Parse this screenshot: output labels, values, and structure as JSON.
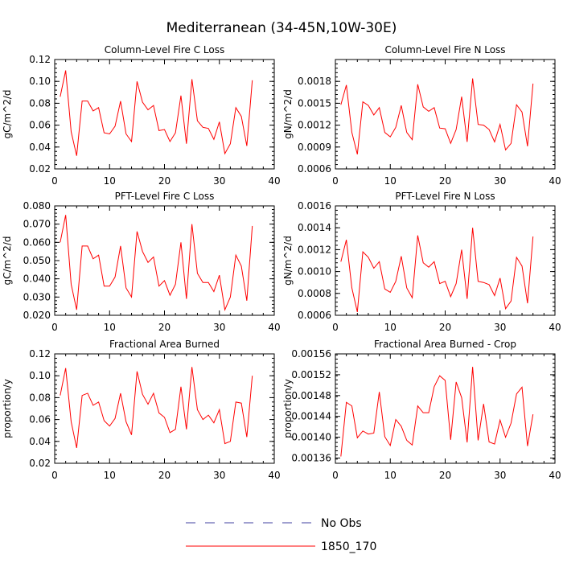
{
  "figure": {
    "title": "Mediterranean (34-45N,10W-30E)"
  },
  "chart_data": [
    {
      "type": "line",
      "title": "Column-Level Fire C Loss",
      "xlabel": "",
      "ylabel": "gC/m^2/d",
      "xlim": [
        0,
        40
      ],
      "ylim": [
        0.02,
        0.12
      ],
      "xticks": [
        0,
        10,
        20,
        30,
        40
      ],
      "yticks": [
        0.02,
        0.04,
        0.06,
        0.08,
        0.1,
        0.12
      ],
      "ytick_labels": [
        "0.02",
        "0.04",
        "0.06",
        "0.08",
        "0.10",
        "0.12"
      ],
      "x": [
        1,
        2,
        3,
        4,
        5,
        6,
        7,
        8,
        9,
        10,
        11,
        12,
        13,
        14,
        15,
        16,
        17,
        18,
        19,
        20,
        21,
        22,
        23,
        24,
        25,
        26,
        27,
        28,
        29,
        30,
        31,
        32,
        33,
        34,
        35,
        36
      ],
      "series": [
        {
          "name": "1850_170",
          "color": "#ff0000",
          "values": [
            0.086,
            0.11,
            0.054,
            0.032,
            0.082,
            0.082,
            0.073,
            0.076,
            0.053,
            0.052,
            0.059,
            0.082,
            0.052,
            0.045,
            0.1,
            0.081,
            0.074,
            0.078,
            0.055,
            0.056,
            0.045,
            0.053,
            0.087,
            0.043,
            0.102,
            0.064,
            0.058,
            0.057,
            0.047,
            0.063,
            0.034,
            0.043,
            0.076,
            0.068,
            0.041,
            0.101
          ]
        }
      ]
    },
    {
      "type": "line",
      "title": "Column-Level Fire N Loss",
      "xlabel": "",
      "ylabel": "gN/m^2/d",
      "xlim": [
        0,
        40
      ],
      "ylim": [
        0.0006,
        0.0021
      ],
      "xticks": [
        0,
        10,
        20,
        30,
        40
      ],
      "yticks": [
        0.0006,
        0.0009,
        0.0012,
        0.0015,
        0.0018
      ],
      "ytick_labels": [
        "0.0006",
        "0.0009",
        "0.0012",
        "0.0015",
        "0.0018"
      ],
      "x": [
        1,
        2,
        3,
        4,
        5,
        6,
        7,
        8,
        9,
        10,
        11,
        12,
        13,
        14,
        15,
        16,
        17,
        18,
        19,
        20,
        21,
        22,
        23,
        24,
        25,
        26,
        27,
        28,
        29,
        30,
        31,
        32,
        33,
        34,
        35,
        36
      ],
      "series": [
        {
          "name": "1850_170",
          "color": "#ff0000",
          "values": [
            0.00148,
            0.00175,
            0.0011,
            0.0008,
            0.00152,
            0.00147,
            0.00134,
            0.00144,
            0.0011,
            0.00104,
            0.00117,
            0.00147,
            0.0011,
            0.001,
            0.00176,
            0.00145,
            0.00139,
            0.00144,
            0.00116,
            0.00115,
            0.00095,
            0.00114,
            0.00159,
            0.00097,
            0.00184,
            0.00121,
            0.0012,
            0.00114,
            0.00097,
            0.00121,
            0.00086,
            0.00095,
            0.00148,
            0.00138,
            0.00091,
            0.00177
          ]
        }
      ]
    },
    {
      "type": "line",
      "title": "PFT-Level Fire C Loss",
      "xlabel": "",
      "ylabel": "gC/m^2/d",
      "xlim": [
        0,
        40
      ],
      "ylim": [
        0.02,
        0.08
      ],
      "xticks": [
        0,
        10,
        20,
        30,
        40
      ],
      "yticks": [
        0.02,
        0.03,
        0.04,
        0.05,
        0.06,
        0.07,
        0.08
      ],
      "ytick_labels": [
        "0.020",
        "0.030",
        "0.040",
        "0.050",
        "0.060",
        "0.070",
        "0.080"
      ],
      "x": [
        1,
        2,
        3,
        4,
        5,
        6,
        7,
        8,
        9,
        10,
        11,
        12,
        13,
        14,
        15,
        16,
        17,
        18,
        19,
        20,
        21,
        22,
        23,
        24,
        25,
        26,
        27,
        28,
        29,
        30,
        31,
        32,
        33,
        34,
        35,
        36
      ],
      "series": [
        {
          "name": "1850_170",
          "color": "#ff0000",
          "values": [
            0.06,
            0.075,
            0.037,
            0.023,
            0.058,
            0.058,
            0.051,
            0.053,
            0.036,
            0.036,
            0.041,
            0.058,
            0.035,
            0.03,
            0.066,
            0.055,
            0.049,
            0.052,
            0.036,
            0.039,
            0.031,
            0.037,
            0.06,
            0.029,
            0.07,
            0.043,
            0.038,
            0.038,
            0.033,
            0.042,
            0.023,
            0.03,
            0.053,
            0.047,
            0.028,
            0.069
          ]
        }
      ]
    },
    {
      "type": "line",
      "title": "PFT-Level Fire N Loss",
      "xlabel": "",
      "ylabel": "gN/m^2/d",
      "xlim": [
        0,
        40
      ],
      "ylim": [
        0.0006,
        0.0016
      ],
      "xticks": [
        0,
        10,
        20,
        30,
        40
      ],
      "yticks": [
        0.0006,
        0.0008,
        0.001,
        0.0012,
        0.0014,
        0.0016
      ],
      "ytick_labels": [
        "0.0006",
        "0.0008",
        "0.0010",
        "0.0012",
        "0.0014",
        "0.0016"
      ],
      "x": [
        1,
        2,
        3,
        4,
        5,
        6,
        7,
        8,
        9,
        10,
        11,
        12,
        13,
        14,
        15,
        16,
        17,
        18,
        19,
        20,
        21,
        22,
        23,
        24,
        25,
        26,
        27,
        28,
        29,
        30,
        31,
        32,
        33,
        34,
        35,
        36
      ],
      "series": [
        {
          "name": "1850_170",
          "color": "#ff0000",
          "values": [
            0.00109,
            0.00129,
            0.00085,
            0.00063,
            0.00118,
            0.00113,
            0.00103,
            0.00109,
            0.00084,
            0.00081,
            0.00091,
            0.00114,
            0.00085,
            0.00076,
            0.00133,
            0.00108,
            0.00104,
            0.00109,
            0.00089,
            0.00091,
            0.00077,
            0.00089,
            0.0012,
            0.00075,
            0.0014,
            0.00091,
            0.0009,
            0.00088,
            0.00078,
            0.00094,
            0.00066,
            0.00073,
            0.00113,
            0.00105,
            0.00071,
            0.00132
          ]
        }
      ]
    },
    {
      "type": "line",
      "title": "Fractional Area Burned",
      "xlabel": "",
      "ylabel": "proportion/y",
      "xlim": [
        0,
        40
      ],
      "ylim": [
        0.02,
        0.12
      ],
      "xticks": [
        0,
        10,
        20,
        30,
        40
      ],
      "yticks": [
        0.02,
        0.04,
        0.06,
        0.08,
        0.1,
        0.12
      ],
      "ytick_labels": [
        "0.02",
        "0.04",
        "0.06",
        "0.08",
        "0.10",
        "0.12"
      ],
      "x": [
        1,
        2,
        3,
        4,
        5,
        6,
        7,
        8,
        9,
        10,
        11,
        12,
        13,
        14,
        15,
        16,
        17,
        18,
        19,
        20,
        21,
        22,
        23,
        24,
        25,
        26,
        27,
        28,
        29,
        30,
        31,
        32,
        33,
        34,
        35,
        36
      ],
      "series": [
        {
          "name": "1850_170",
          "color": "#ff0000",
          "values": [
            0.082,
            0.107,
            0.058,
            0.034,
            0.082,
            0.084,
            0.073,
            0.076,
            0.059,
            0.054,
            0.061,
            0.084,
            0.058,
            0.046,
            0.104,
            0.083,
            0.074,
            0.084,
            0.066,
            0.062,
            0.048,
            0.051,
            0.09,
            0.051,
            0.108,
            0.069,
            0.06,
            0.064,
            0.057,
            0.069,
            0.038,
            0.04,
            0.076,
            0.075,
            0.044,
            0.1
          ]
        }
      ]
    },
    {
      "type": "line",
      "title": "Fractional Area Burned - Crop",
      "xlabel": "",
      "ylabel": "proportion/y",
      "xlim": [
        0,
        40
      ],
      "ylim": [
        0.00135,
        0.00156
      ],
      "xticks": [
        0,
        10,
        20,
        30,
        40
      ],
      "yticks": [
        0.00136,
        0.0014,
        0.00144,
        0.00148,
        0.00152,
        0.00156
      ],
      "ytick_labels": [
        "0.00136",
        "0.00140",
        "0.00144",
        "0.00148",
        "0.00152",
        "0.00156"
      ],
      "x": [
        1,
        2,
        3,
        4,
        5,
        6,
        7,
        8,
        9,
        10,
        11,
        12,
        13,
        14,
        15,
        16,
        17,
        18,
        19,
        20,
        21,
        22,
        23,
        24,
        25,
        26,
        27,
        28,
        29,
        30,
        31,
        32,
        33,
        34,
        35,
        36
      ],
      "series": [
        {
          "name": "1850_170",
          "color": "#ff0000",
          "values": [
            0.001363,
            0.001467,
            0.00146,
            0.001399,
            0.001412,
            0.001406,
            0.001408,
            0.001487,
            0.001401,
            0.001384,
            0.001434,
            0.001421,
            0.001394,
            0.001385,
            0.00146,
            0.001447,
            0.001447,
            0.001497,
            0.001518,
            0.001509,
            0.001395,
            0.001506,
            0.001476,
            0.00139,
            0.001535,
            0.001394,
            0.001464,
            0.001391,
            0.001387,
            0.001433,
            0.0014,
            0.001427,
            0.001483,
            0.001496,
            0.001383,
            0.001444
          ]
        }
      ]
    }
  ],
  "legend": {
    "items": [
      {
        "label": "No Obs",
        "color": "#4040a0",
        "style": "dashed"
      },
      {
        "label": "1850_170",
        "color": "#ff0000",
        "style": "solid"
      }
    ]
  }
}
